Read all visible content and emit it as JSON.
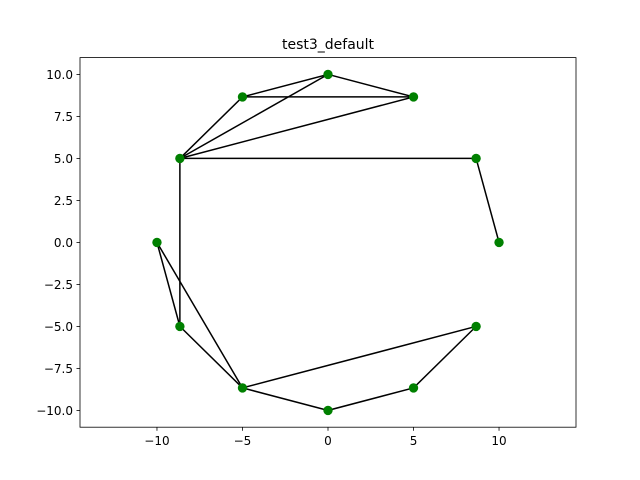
{
  "chart_data": {
    "type": "scatter",
    "title": "test3_default",
    "xlabel": "",
    "ylabel": "",
    "xlim": [
      -14.5,
      14.5
    ],
    "ylim": [
      -11.0,
      11.0
    ],
    "x_ticks": [
      -10,
      -5,
      0,
      5,
      10
    ],
    "x_tick_labels": [
      "−10",
      "−5",
      "0",
      "5",
      "10"
    ],
    "y_ticks": [
      -10.0,
      -7.5,
      -5.0,
      -2.5,
      0.0,
      2.5,
      5.0,
      7.5,
      10.0
    ],
    "y_tick_labels": [
      "−10.0",
      "−7.5",
      "−5.0",
      "−2.5",
      "0.0",
      "2.5",
      "5.0",
      "7.5",
      "10.0"
    ],
    "grid": false,
    "marker_color": "#008000",
    "edge_color": "#000000",
    "nodes": [
      {
        "x": 10.0,
        "y": 0.0
      },
      {
        "x": 8.66,
        "y": 5.0
      },
      {
        "x": 5.0,
        "y": 8.66
      },
      {
        "x": 0.0,
        "y": 10.0
      },
      {
        "x": -5.0,
        "y": 8.66
      },
      {
        "x": -8.66,
        "y": 5.0
      },
      {
        "x": -10.0,
        "y": 0.0
      },
      {
        "x": -8.66,
        "y": -5.0
      },
      {
        "x": -5.0,
        "y": -8.66
      },
      {
        "x": 0.0,
        "y": -10.0
      },
      {
        "x": 5.0,
        "y": -8.66
      },
      {
        "x": 8.66,
        "y": -5.0
      }
    ],
    "edges": [
      [
        0,
        1
      ],
      [
        1,
        5
      ],
      [
        2,
        3
      ],
      [
        2,
        4
      ],
      [
        2,
        5
      ],
      [
        3,
        4
      ],
      [
        3,
        5
      ],
      [
        4,
        5
      ],
      [
        5,
        7
      ],
      [
        6,
        7
      ],
      [
        6,
        8
      ],
      [
        7,
        8
      ],
      [
        8,
        9
      ],
      [
        8,
        11
      ],
      [
        9,
        10
      ],
      [
        10,
        11
      ]
    ]
  }
}
